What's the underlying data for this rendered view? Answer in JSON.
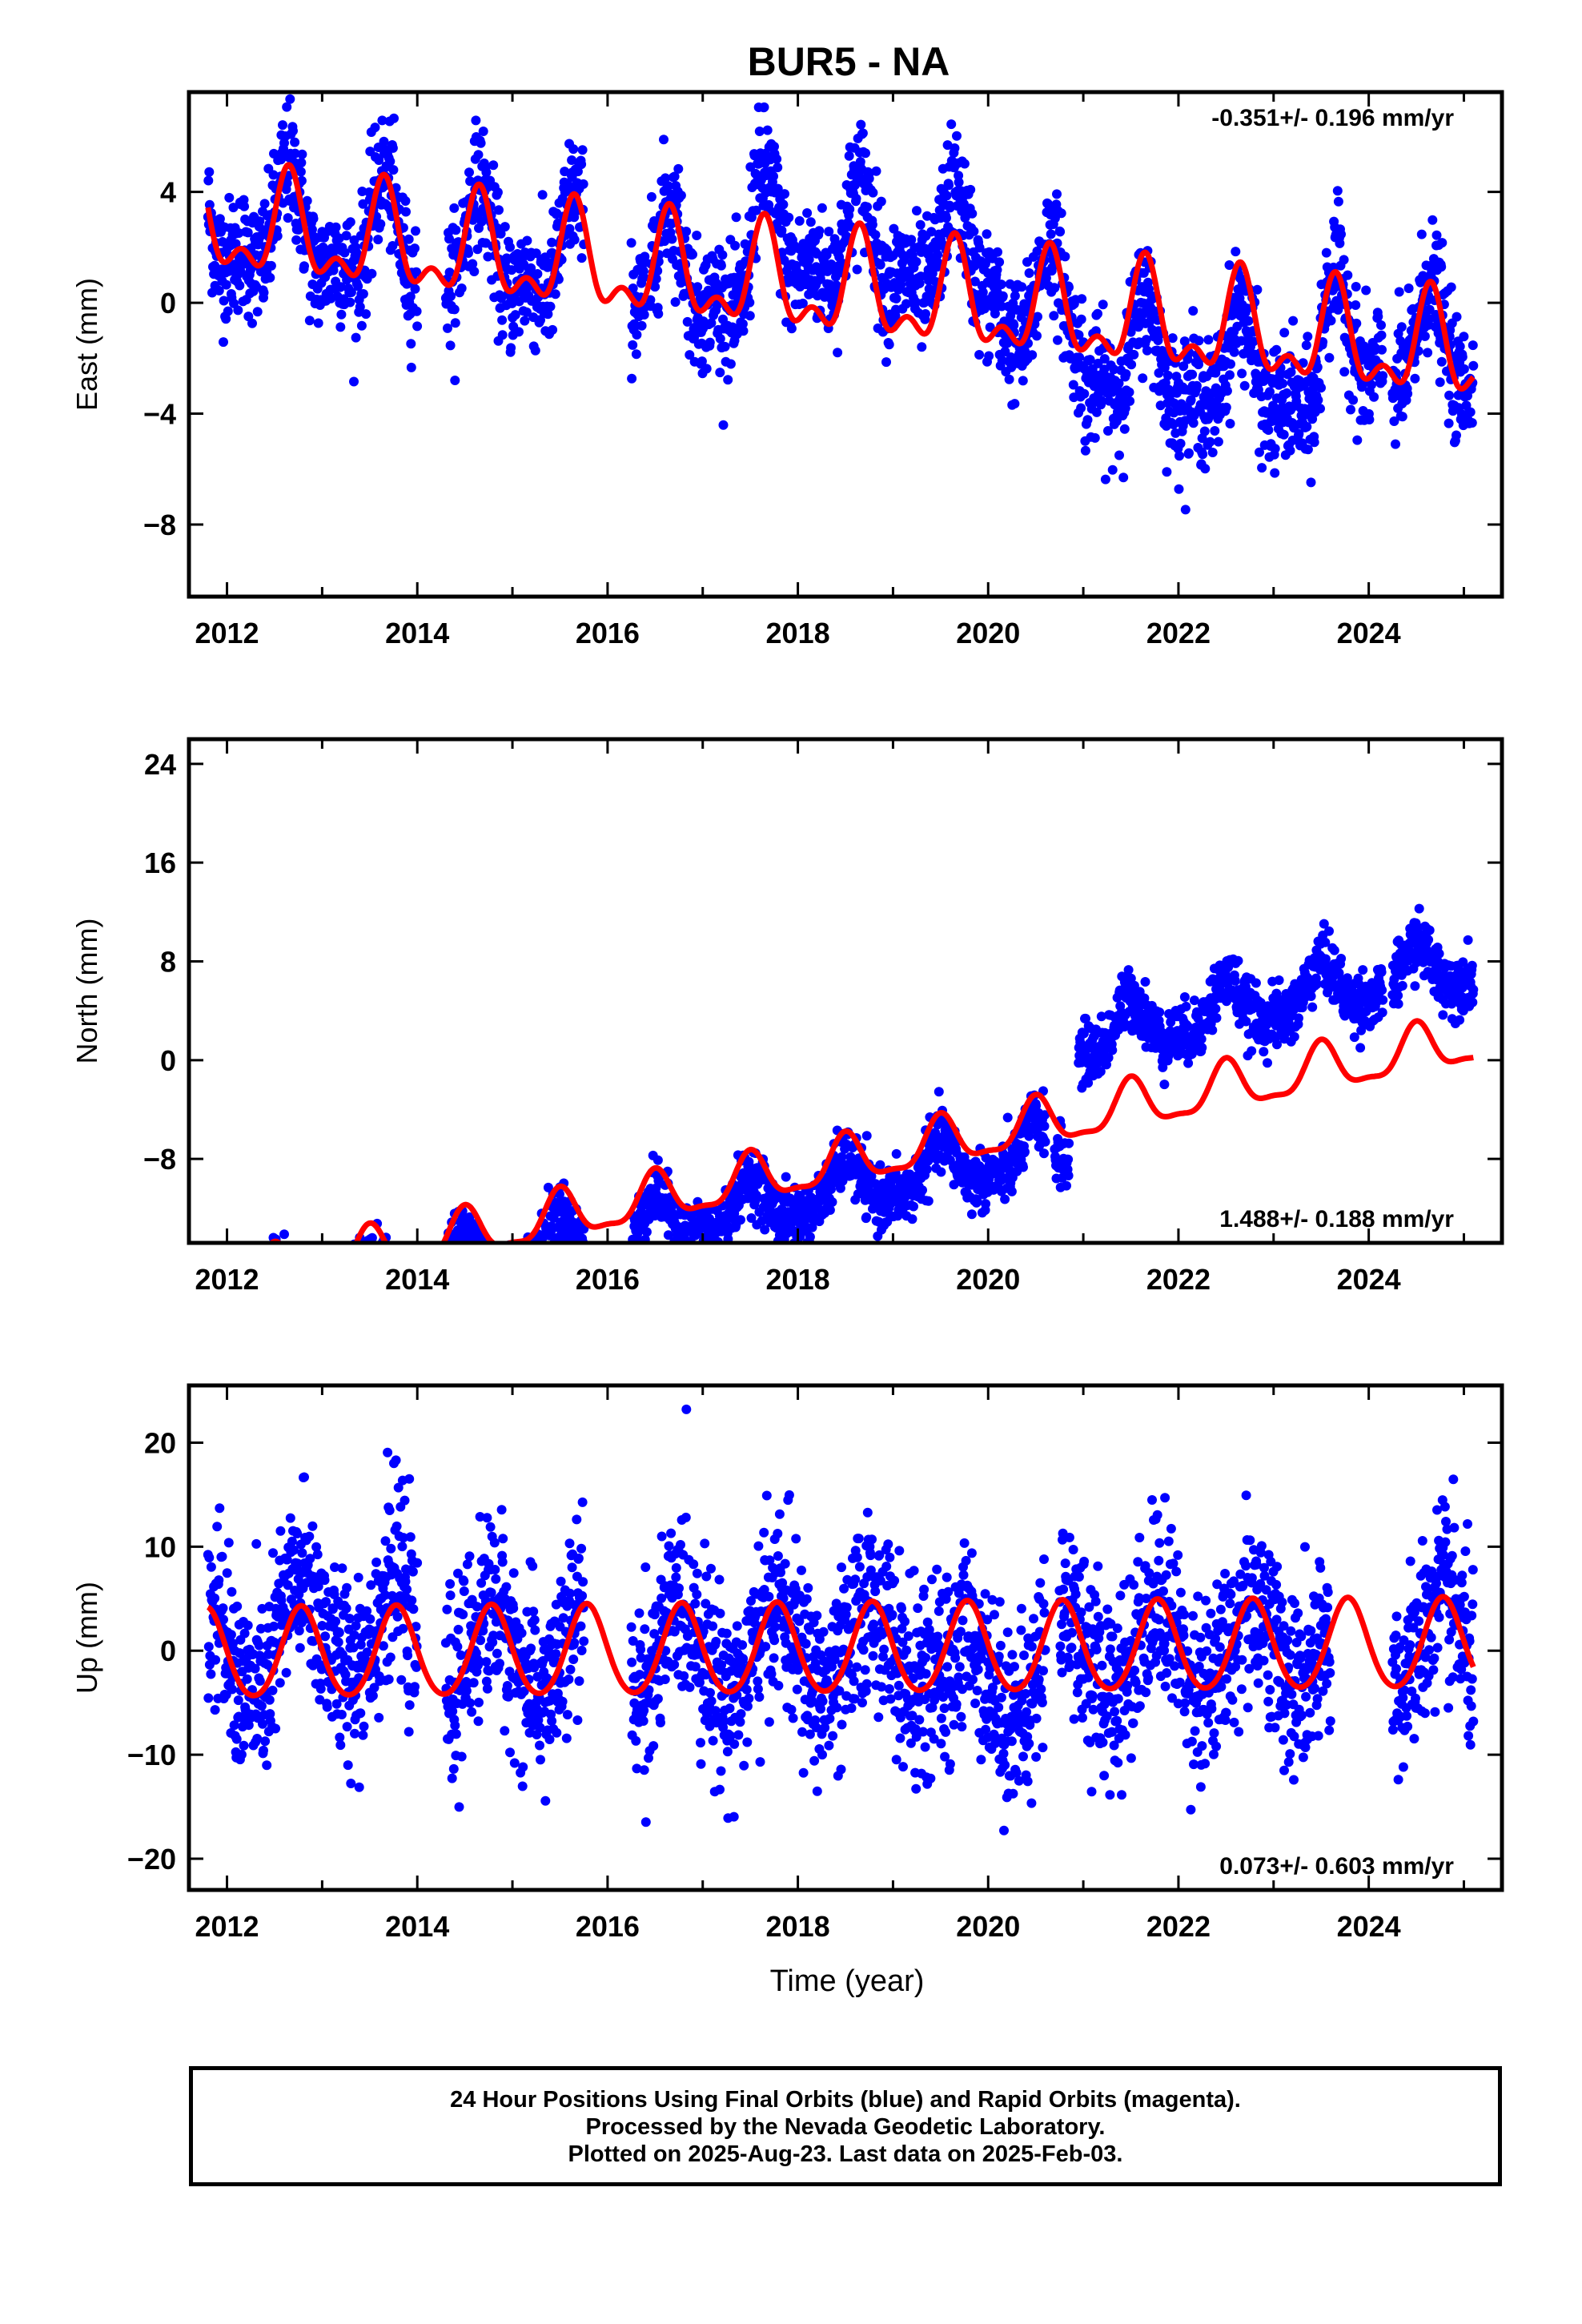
{
  "title": "BUR5 - NA",
  "xlabel": "Time (year)",
  "footer": {
    "line1": "24 Hour Positions Using Final Orbits (blue) and Rapid Orbits (magenta).",
    "line2": "Processed by the Nevada Geodetic Laboratory.",
    "line3": "Plotted on 2025-Aug-23. Last data on 2025-Feb-03."
  },
  "colors": {
    "data_points": "#0000ff",
    "model_fit": "#ff0000",
    "axes": "#000000"
  },
  "chart_data": [
    {
      "type": "scatter",
      "panel": "east",
      "ylabel": "East (mm)",
      "rate_text": "-0.351+/- 0.196 mm/yr",
      "rate_position": "top-right",
      "xlim": [
        2011.6,
        2025.4
      ],
      "ylim": [
        -10.6,
        7.6
      ],
      "xticks": [
        2012,
        2014,
        2016,
        2018,
        2020,
        2022,
        2024
      ],
      "yticks": [
        -8,
        -4,
        0,
        4
      ],
      "ytick_labels": [
        "−8",
        "−4",
        "0",
        "4"
      ],
      "model": {
        "offset": 0.6,
        "trend": -0.351,
        "annual_amp": 1.6,
        "annual_phase_year": 2012.65,
        "semi_amp": 0.9,
        "steps": []
      },
      "scatter": {
        "noise_sd": 1.1,
        "extra_offset": 0.0,
        "trend_extra": 0.0,
        "segments": [
          [
            2011.8,
            2014.0
          ],
          [
            2014.3,
            2015.75
          ],
          [
            2016.25,
            2016.4
          ],
          [
            2016.45,
            2024.15
          ],
          [
            2024.25,
            2025.1
          ]
        ],
        "anomalies": [
          {
            "from": 2017.5,
            "to": 2020.1,
            "shift": 1.6
          },
          {
            "from": 2021.0,
            "to": 2023.5,
            "shift": -1.6
          }
        ]
      }
    },
    {
      "type": "scatter",
      "panel": "north",
      "ylabel": "North (mm)",
      "rate_text": "1.488+/- 0.188 mm/yr",
      "rate_position": "bottom-right",
      "xlim": [
        2011.6,
        2025.4
      ],
      "ylim": [
        -14.8,
        26.0
      ],
      "xticks": [
        2012,
        2014,
        2016,
        2018,
        2020,
        2022,
        2024
      ],
      "yticks": [
        -8,
        0,
        8,
        16,
        24
      ],
      "ytick_labels": [
        "−8",
        "0",
        "8",
        "16",
        "24"
      ],
      "model": {
        "offset": -9.0,
        "trend": 1.488,
        "annual_amp": 1.9,
        "annual_phase_year": 2012.5,
        "semi_amp": 0.6,
        "steps": []
      },
      "scatter": {
        "noise_sd": 1.2,
        "extra_offset": -2.2,
        "trend_extra": 0.0,
        "segments": [
          [
            2011.8,
            2014.0
          ],
          [
            2014.3,
            2015.75
          ],
          [
            2016.25,
            2020.6
          ],
          [
            2020.7,
            2020.85
          ],
          [
            2020.95,
            2024.15
          ],
          [
            2024.25,
            2025.1
          ]
        ],
        "anomalies": [
          {
            "from": 2020.9,
            "to": 2025.2,
            "shift": 8.5
          }
        ]
      }
    },
    {
      "type": "scatter",
      "panel": "up",
      "ylabel": "Up (mm)",
      "rate_text": "0.073+/- 0.603 mm/yr",
      "rate_position": "bottom-right",
      "xlim": [
        2011.6,
        2025.4
      ],
      "ylim": [
        -23.0,
        25.5
      ],
      "xticks": [
        2012,
        2014,
        2016,
        2018,
        2020,
        2022,
        2024
      ],
      "yticks": [
        -20,
        -10,
        0,
        10,
        20
      ],
      "ytick_labels": [
        "−20",
        "−10",
        "0",
        "10",
        "20"
      ],
      "model": {
        "offset": 0.0,
        "trend": 0.073,
        "annual_amp": 4.3,
        "annual_phase_year": 2012.78,
        "semi_amp": 0.4,
        "steps": []
      },
      "scatter": {
        "noise_sd": 4.4,
        "extra_offset": 0.0,
        "trend_extra": 0.0,
        "segments": [
          [
            2011.8,
            2014.0
          ],
          [
            2014.3,
            2015.75
          ],
          [
            2016.25,
            2020.6
          ],
          [
            2020.75,
            2023.6
          ],
          [
            2024.25,
            2025.1
          ]
        ],
        "anomalies": [
          {
            "from": 2012.5,
            "to": 2013.9,
            "shift": 2.5
          },
          {
            "from": 2019.5,
            "to": 2020.5,
            "shift": -3.0
          }
        ]
      }
    }
  ]
}
